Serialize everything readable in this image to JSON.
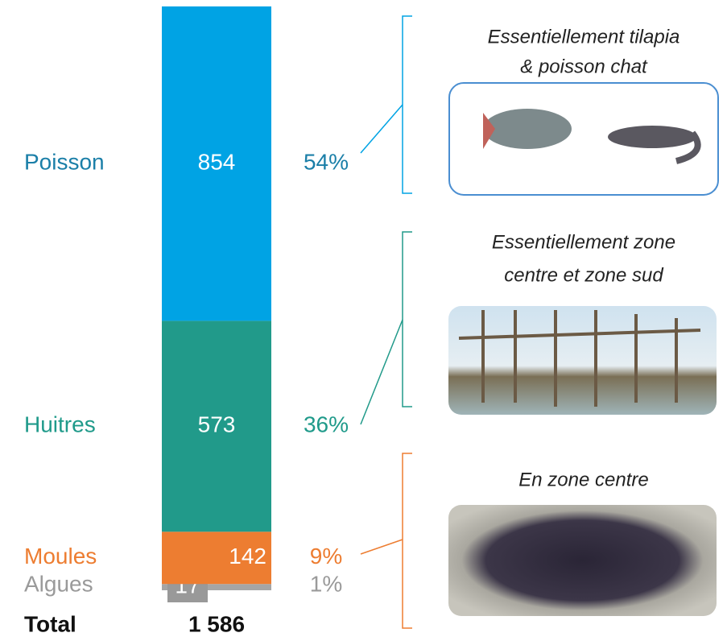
{
  "chart_data": {
    "type": "stacked_bar",
    "ylim": [
      0,
      1586
    ],
    "series": [
      {
        "name": "Algues",
        "color": "#a5a5a5",
        "label_color": "#9a9a9a",
        "values": [
          17
        ],
        "share": 1,
        "share_label": "1%"
      },
      {
        "name": "Moules",
        "color": "#ed7d31",
        "label_color": "#ed7d31",
        "values": [
          142
        ],
        "share": 9,
        "share_label": "9%",
        "annotation": "En zone centre"
      },
      {
        "name": "Huitres",
        "color": "#219a8a",
        "label_color": "#1f9a8a",
        "values": [
          573
        ],
        "share": 36,
        "share_label": "36%",
        "annotation": [
          "Essentiellement zone",
          "centre et zone sud"
        ]
      },
      {
        "name": "Poisson",
        "color": "#00a3e4",
        "label_color": "#1b7fa8",
        "values": [
          854
        ],
        "share": 54,
        "share_label": "54%",
        "annotation": [
          "Essentiellement tilapia",
          "& poisson chat"
        ]
      }
    ],
    "total_label": "Total",
    "total": {
      "value": 1586,
      "label": "1 586"
    }
  }
}
